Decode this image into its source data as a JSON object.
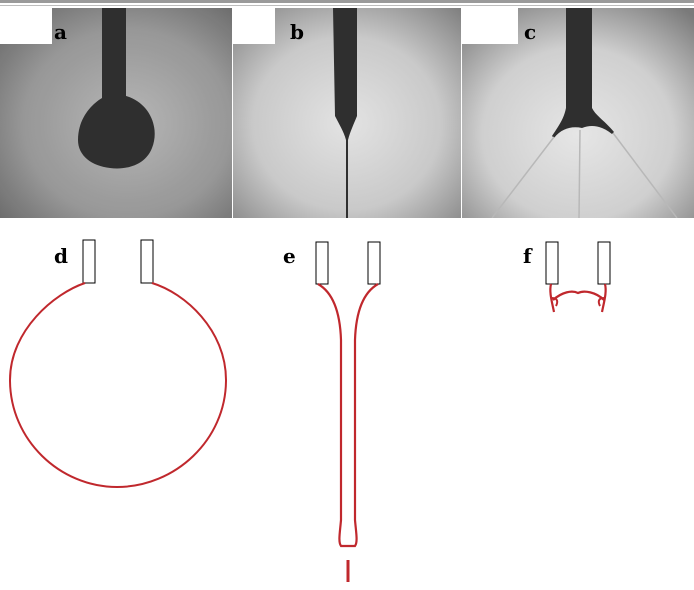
{
  "figure": {
    "panels": [
      {
        "id": "a",
        "label": "a"
      },
      {
        "id": "b",
        "label": "b"
      },
      {
        "id": "c",
        "label": "c"
      },
      {
        "id": "d",
        "label": "d"
      },
      {
        "id": "e",
        "label": "e"
      },
      {
        "id": "f",
        "label": "f"
      }
    ],
    "colors": {
      "interface": "#c0282d",
      "nozzle_outline": "#000000",
      "photo_dark": "#2f2f2f"
    }
  }
}
